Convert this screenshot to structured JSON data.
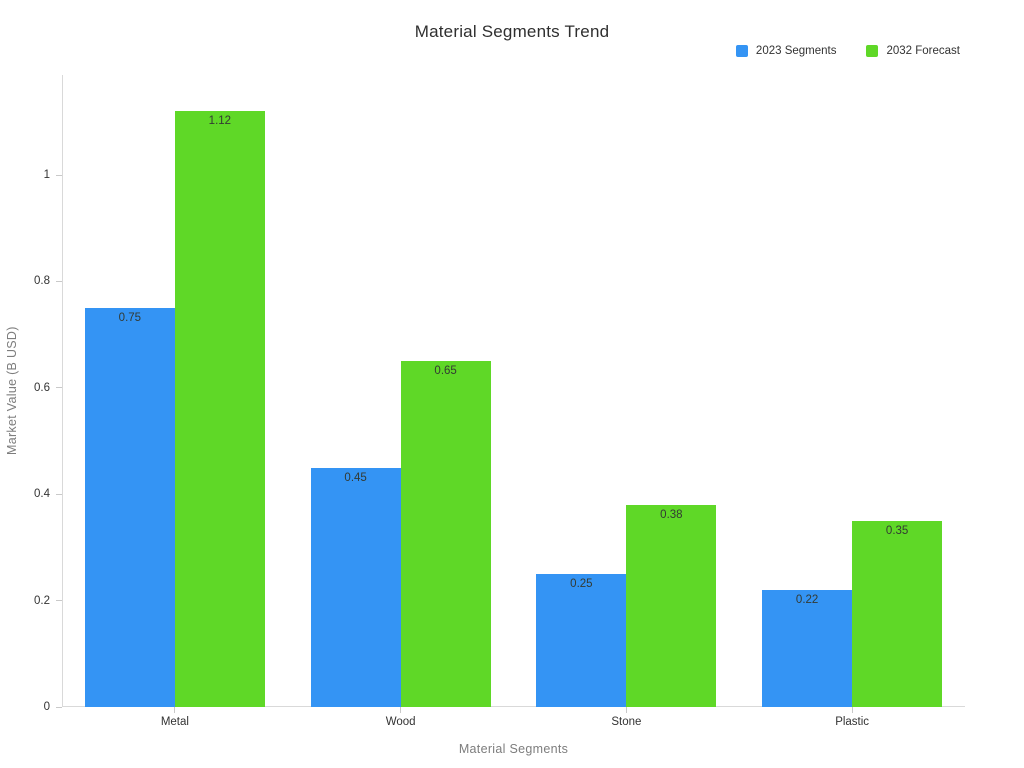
{
  "title": "Material Segments Trend",
  "legend": [
    {
      "label": "2023 Segments",
      "color": "#3494f4"
    },
    {
      "label": "2032 Forecast",
      "color": "#5fd827"
    }
  ],
  "chart_data": {
    "type": "bar",
    "categories": [
      "Metal",
      "Wood",
      "Stone",
      "Plastic"
    ],
    "series": [
      {
        "name": "2023 Segments",
        "color": "#3494f4",
        "values": [
          0.75,
          0.45,
          0.25,
          0.22
        ]
      },
      {
        "name": "2032 Forecast",
        "color": "#5fd827",
        "values": [
          1.12,
          0.65,
          0.38,
          0.35
        ]
      }
    ],
    "title": "Material Segments Trend",
    "xlabel": "Material Segments",
    "ylabel": "Market Value (B USD)",
    "ylim": [
      0,
      1.188
    ],
    "yticks": [
      0,
      0.2,
      0.4,
      0.6,
      0.8,
      1
    ],
    "ytick_labels": [
      "0",
      "0.2",
      "0.4",
      "0.6",
      "0.8",
      "1"
    ],
    "grid": false,
    "legend_position": "top-right",
    "value_labels": "inside-top"
  }
}
